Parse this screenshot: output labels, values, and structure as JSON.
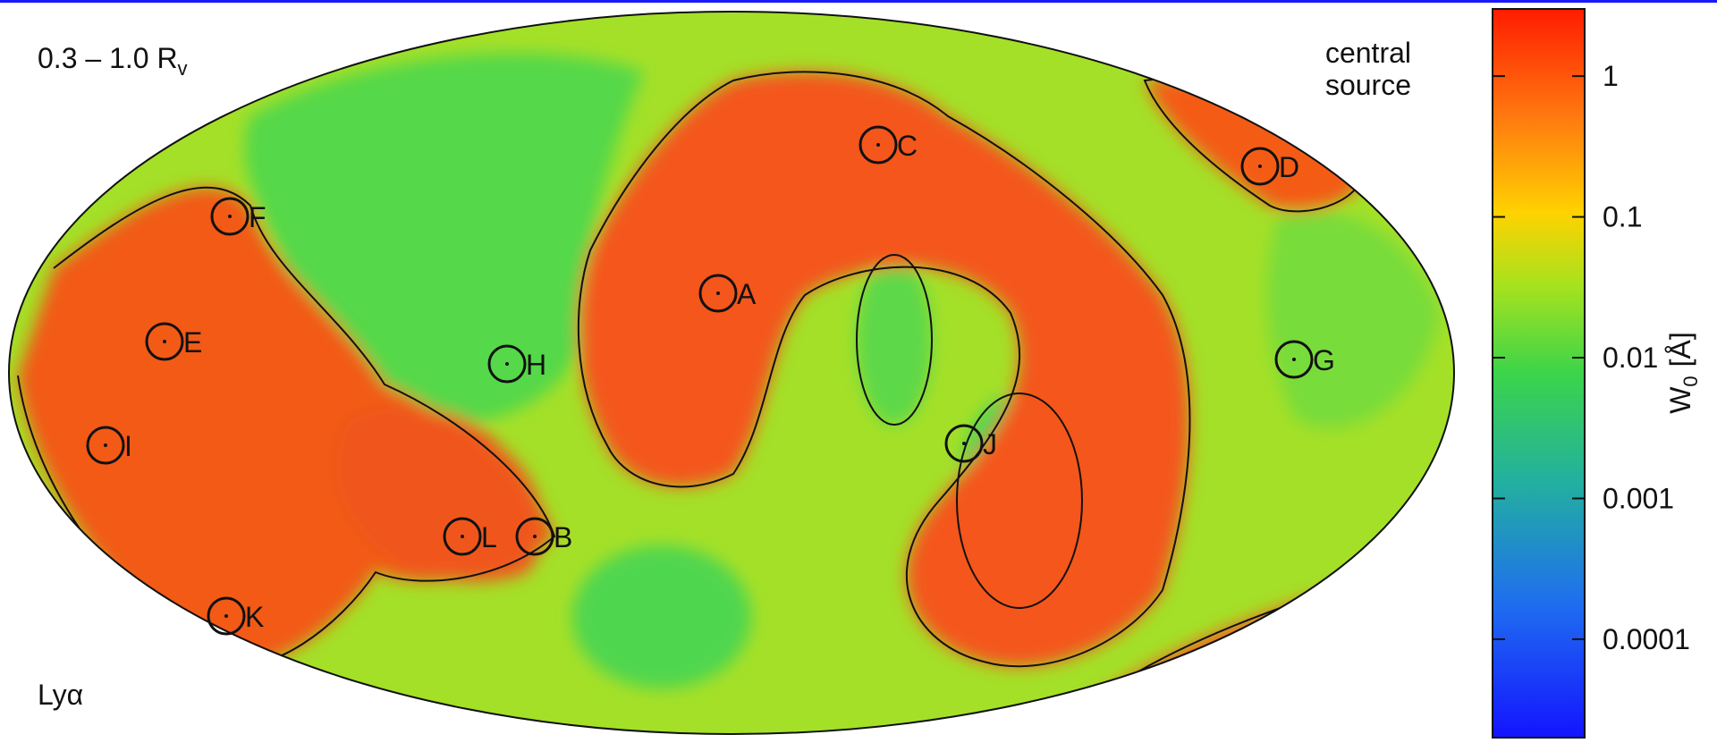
{
  "panel_label": "0.3 – 1.0 R",
  "panel_label_sub": "v",
  "source_note": [
    "central",
    "source"
  ],
  "line_label": "Lyα",
  "sources": [
    {
      "label": "A"
    },
    {
      "label": "B"
    },
    {
      "label": "C"
    },
    {
      "label": "D"
    },
    {
      "label": "E"
    },
    {
      "label": "F"
    },
    {
      "label": "G"
    },
    {
      "label": "H"
    },
    {
      "label": "I"
    },
    {
      "label": "J"
    },
    {
      "label": "K"
    },
    {
      "label": "L"
    }
  ],
  "colorbar": {
    "label": "W",
    "label_sub": "0",
    "label_unit": "[Å]",
    "scale": "log",
    "lim": [
      2e-05,
      3
    ],
    "ticks": [
      1,
      0.1,
      0.01,
      0.001,
      0.0001
    ]
  }
}
